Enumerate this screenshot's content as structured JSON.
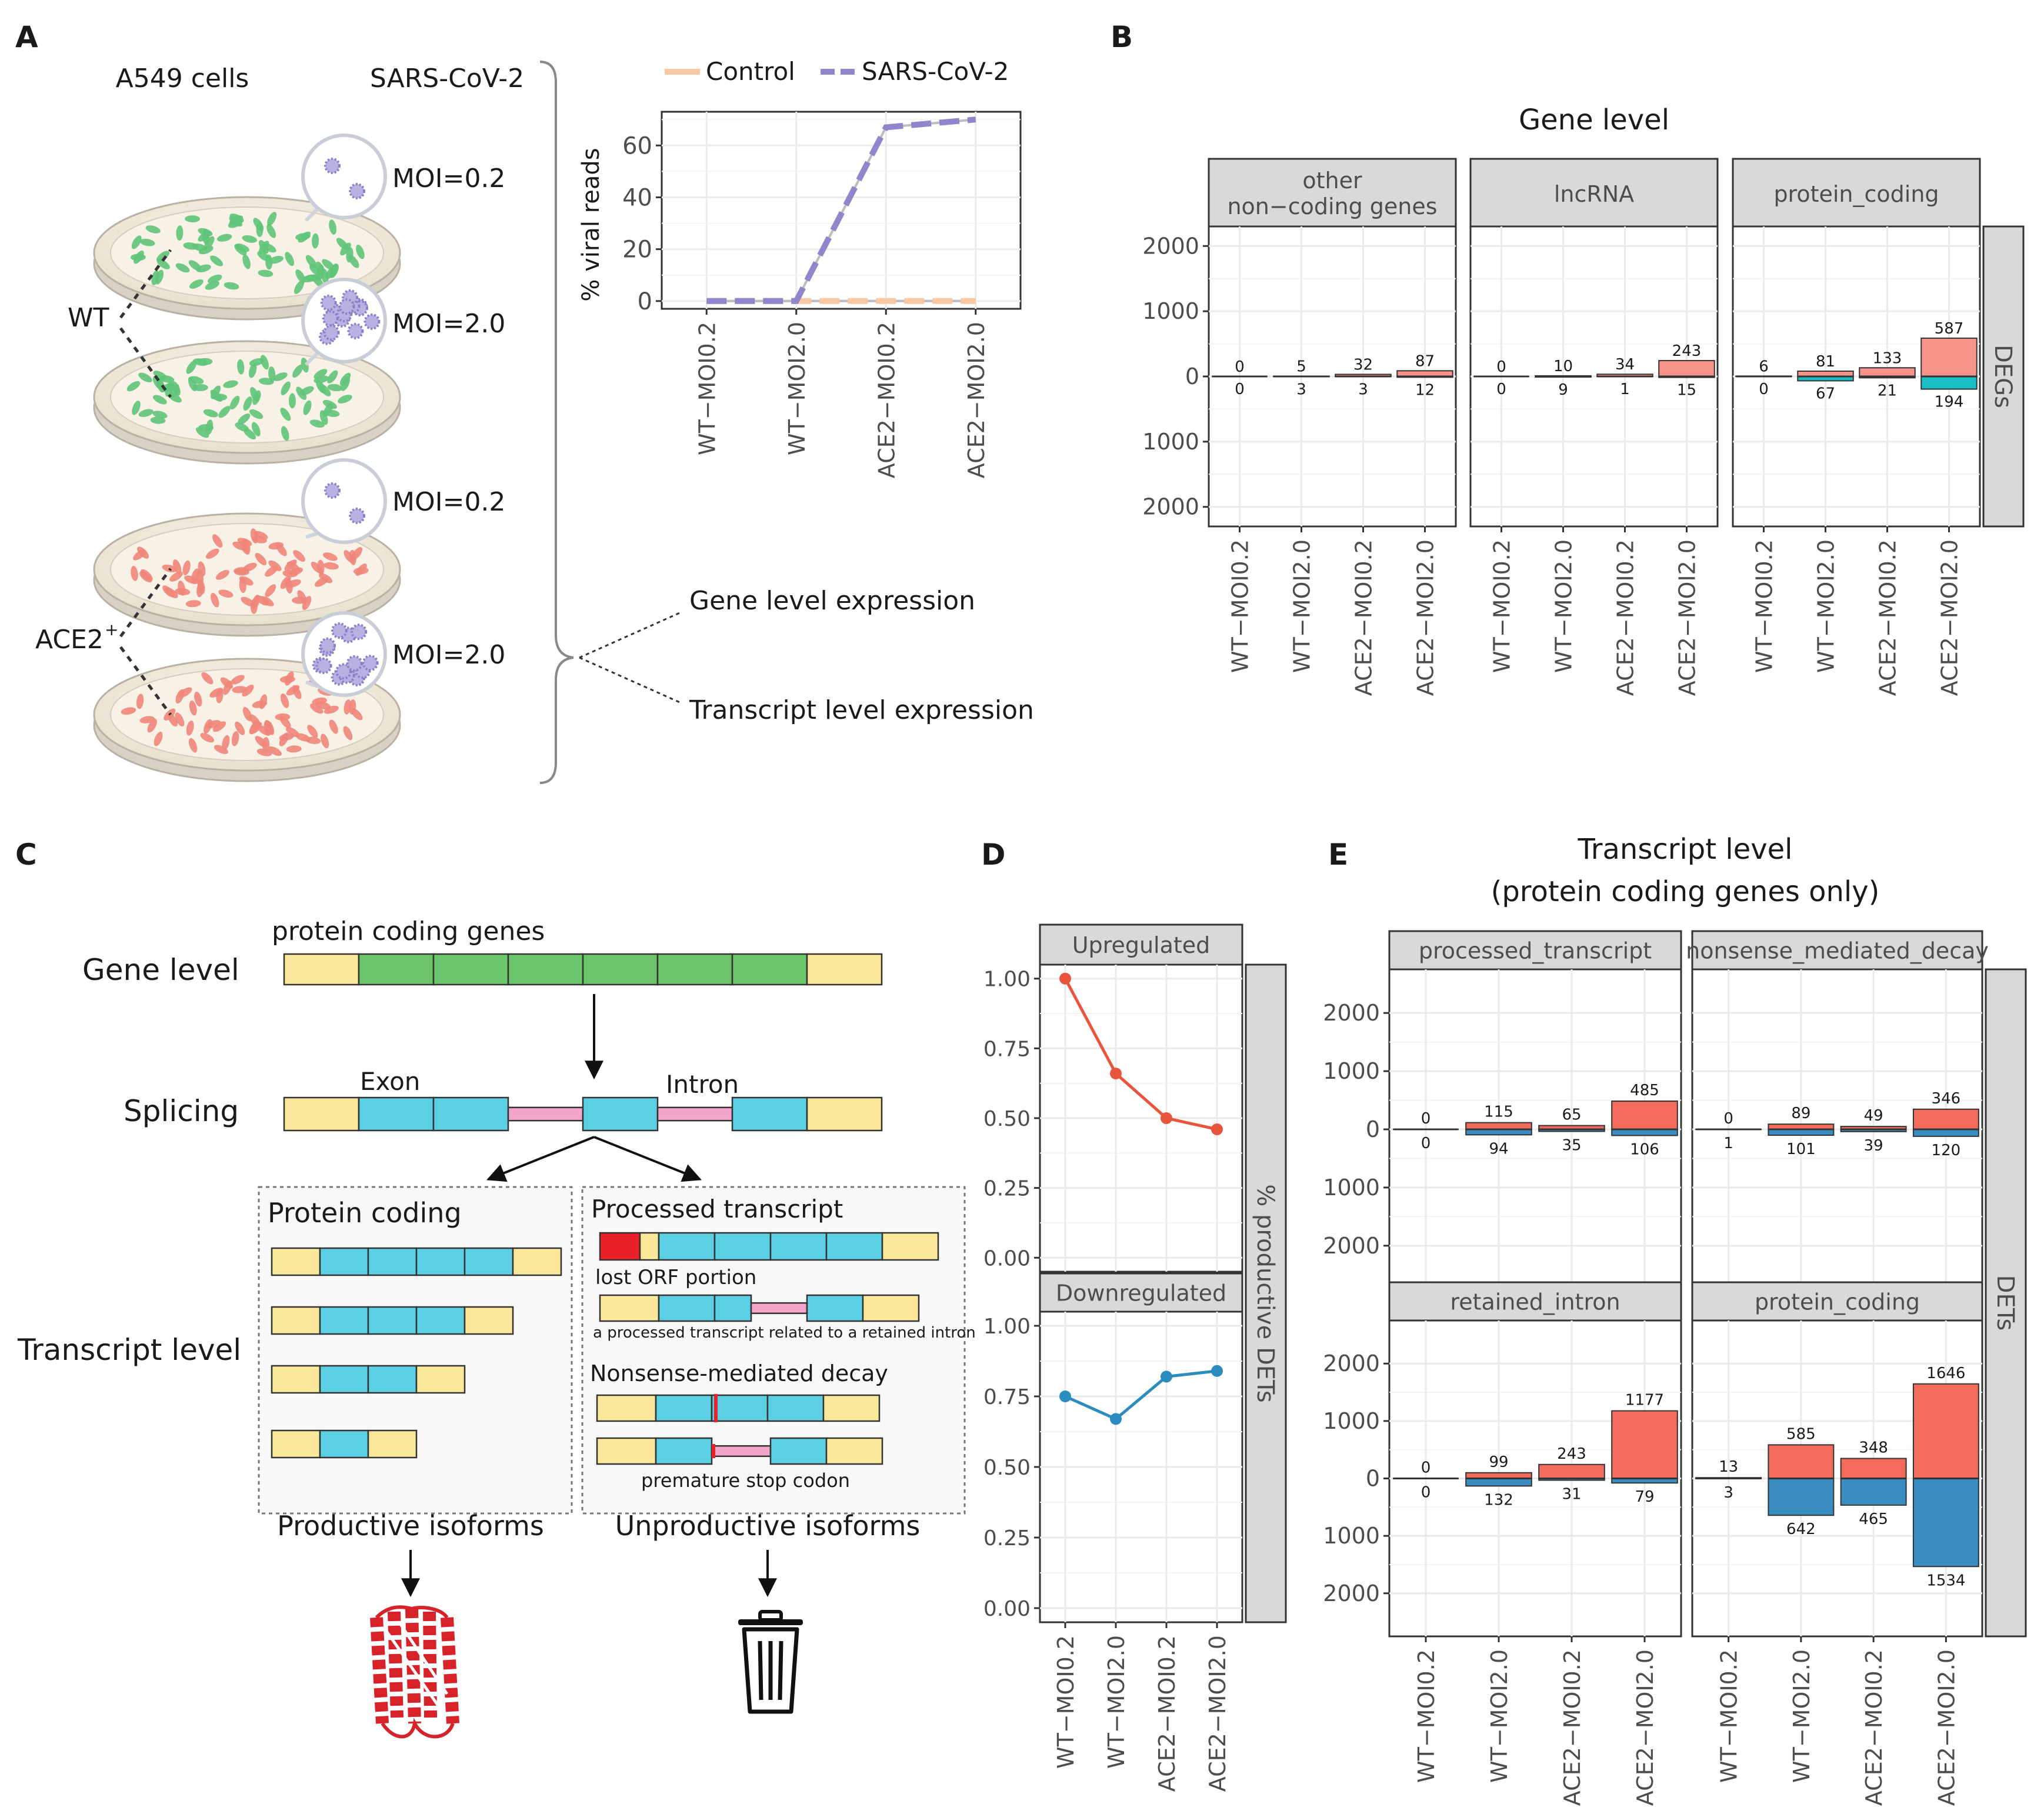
{
  "panel_letters": {
    "A": "A",
    "B": "B",
    "C": "C",
    "D": "D",
    "E": "E"
  },
  "panelA": {
    "a549": "A549 cells",
    "sars": "SARS-CoV-2",
    "moi_low": "MOI=0.2",
    "moi_high": "MOI=2.0",
    "wt": "WT",
    "ace2": "ACE2",
    "ace2_sup": "+",
    "gene_expr": "Gene level expression",
    "tx_expr": "Transcript level expression",
    "colors": {
      "wt_cells": "#5fc47a",
      "ace2_cells": "#f0867a",
      "dish": "#f6eedd",
      "virus": "#8a80c8"
    }
  },
  "categories": [
    "WT−MOI0.2",
    "WT−MOI2.0",
    "ACE2−MOI0.2",
    "ACE2−MOI2.0"
  ],
  "panelC": {
    "protein_coding_genes": "protein coding genes",
    "gene_level": "Gene level",
    "splicing": "Splicing",
    "exon": "Exon",
    "intron": "Intron",
    "transcript_level": "Transcript level",
    "protein_coding": "Protein coding",
    "processed_transcript": "Processed transcript",
    "lost_orf": "lost ORF portion",
    "retained_intron_note": "a processed transcript related to a retained intron",
    "nmd": "Nonsense-mediated decay",
    "premature_stop": "premature stop codon",
    "productive": "Productive isoforms",
    "unproductive": "Unproductive isoforms",
    "colors": {
      "utr": "#fbe79a",
      "exon_gene": "#6cc56a",
      "exon": "#5bd0e2",
      "intron": "#f3a6c9",
      "stop": "#e8202a"
    }
  },
  "chart_data": [
    {
      "id": "A",
      "type": "line",
      "categories": [
        "WT−MOI0.2",
        "WT−MOI2.0",
        "ACE2−MOI0.2",
        "ACE2−MOI2.0"
      ],
      "series": [
        {
          "name": "Control",
          "values": [
            0,
            0,
            0,
            0
          ],
          "color": "#f9c9a3"
        },
        {
          "name": "SARS-CoV-2",
          "values": [
            0,
            0,
            67,
            70
          ],
          "color": "#8f86cc"
        }
      ],
      "ylabel": "% viral reads",
      "yticks": [
        0,
        20,
        40,
        60
      ],
      "ylim": [
        -3,
        73
      ],
      "legend": "top"
    },
    {
      "id": "B",
      "type": "bar",
      "title": "Gene level",
      "strip_right": "DEGs",
      "yticks": [
        "2000",
        "1000",
        "0",
        "1000",
        "2000"
      ],
      "ylim": [
        -2300,
        2300
      ],
      "facets": [
        {
          "label_lines": [
            "other",
            "non−coding genes"
          ],
          "up": [
            0,
            5,
            32,
            87
          ],
          "down": [
            0,
            3,
            3,
            12
          ],
          "up_labels": [
            "0",
            "5",
            "32",
            "87"
          ],
          "down_labels": [
            "0",
            "3",
            "3",
            "12"
          ]
        },
        {
          "label_lines": [
            "lncRNA"
          ],
          "up": [
            0,
            10,
            34,
            243
          ],
          "down": [
            0,
            9,
            1,
            15
          ],
          "up_labels": [
            "0",
            "10",
            "34",
            "243"
          ],
          "down_labels": [
            "0",
            "9",
            "1",
            "15"
          ]
        },
        {
          "label_lines": [
            "protein_coding"
          ],
          "up": [
            6,
            81,
            133,
            587
          ],
          "down": [
            0,
            67,
            21,
            194
          ],
          "up_labels": [
            "6",
            "81",
            "133",
            "587"
          ],
          "down_labels": [
            "0",
            "67",
            "21",
            "194"
          ]
        }
      ],
      "colors": {
        "up": "#f8938a",
        "down": "#19bfc4"
      }
    },
    {
      "id": "D",
      "type": "line",
      "strip_right": "% productive DETs",
      "yticks": [
        "0.00",
        "0.25",
        "0.50",
        "0.75",
        "1.00"
      ],
      "ylim": [
        -0.05,
        1.05
      ],
      "facets": [
        {
          "label": "Upregulated",
          "values": [
            1.0,
            0.66,
            0.5,
            0.46
          ],
          "color": "#e9553c"
        },
        {
          "label": "Downregulated",
          "values": [
            0.75,
            0.67,
            0.82,
            0.84
          ],
          "color": "#2a8cbf"
        }
      ]
    },
    {
      "id": "E",
      "type": "bar",
      "title_lines": [
        "Transcript level",
        "(protein coding genes only)"
      ],
      "strip_right": "DETs",
      "yticks": [
        "2000",
        "1000",
        "0",
        "1000",
        "2000"
      ],
      "ylim": [
        -2750,
        2750
      ],
      "facets": [
        {
          "label": "processed_transcript",
          "up": [
            0,
            115,
            65,
            485
          ],
          "down": [
            0,
            94,
            35,
            106
          ],
          "up_labels": [
            "0",
            "115",
            "65",
            "485"
          ],
          "down_labels": [
            "0",
            "94",
            "35",
            "106"
          ]
        },
        {
          "label": "nonsense_mediated_decay",
          "up": [
            0,
            89,
            49,
            346
          ],
          "down": [
            1,
            101,
            39,
            120
          ],
          "up_labels": [
            "0",
            "89",
            "49",
            "346"
          ],
          "down_labels": [
            "1",
            "101",
            "39",
            "120"
          ]
        },
        {
          "label": "retained_intron",
          "up": [
            0,
            99,
            243,
            1177
          ],
          "down": [
            0,
            132,
            31,
            79
          ],
          "up_labels": [
            "0",
            "99",
            "243",
            "1177"
          ],
          "down_labels": [
            "0",
            "132",
            "31",
            "79"
          ]
        },
        {
          "label": "protein_coding",
          "up": [
            13,
            585,
            348,
            1646
          ],
          "down": [
            3,
            642,
            465,
            1534
          ],
          "up_labels": [
            "13",
            "585",
            "348",
            "1646"
          ],
          "down_labels": [
            "3",
            "642",
            "465",
            "1534"
          ]
        }
      ],
      "colors": {
        "up": "#f26b5b",
        "down": "#3a8dc0"
      }
    }
  ]
}
